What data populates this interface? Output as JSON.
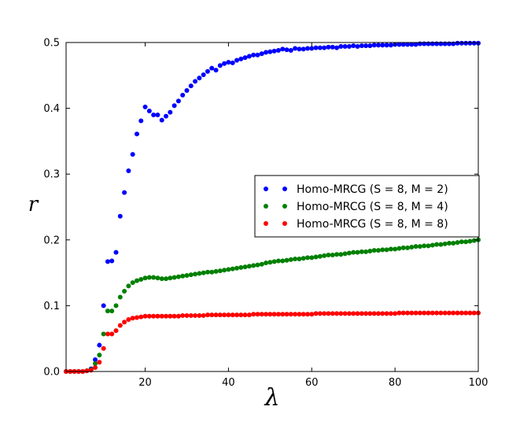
{
  "chart_data": {
    "type": "scatter",
    "title": "",
    "xlabel": "λ",
    "ylabel": "r",
    "xlim": [
      1,
      100
    ],
    "ylim": [
      0,
      0.5
    ],
    "xticks": [
      20,
      40,
      60,
      80,
      100
    ],
    "yticks": [
      0.0,
      0.1,
      0.2,
      0.3,
      0.4,
      0.5
    ],
    "grid": false,
    "legend_position": "center-right",
    "series": [
      {
        "name": "Homo-MRCG (S = 8, M = 2)",
        "color": "#0000ff",
        "points": [
          [
            1,
            0.0
          ],
          [
            2,
            0.0
          ],
          [
            3,
            0.0
          ],
          [
            4,
            0.0
          ],
          [
            5,
            0.0
          ],
          [
            6,
            0.001
          ],
          [
            7,
            0.004
          ],
          [
            8,
            0.018
          ],
          [
            9,
            0.04
          ],
          [
            10,
            0.1
          ],
          [
            11,
            0.167
          ],
          [
            12,
            0.168
          ],
          [
            13,
            0.181
          ],
          [
            14,
            0.236
          ],
          [
            15,
            0.272
          ],
          [
            16,
            0.305
          ],
          [
            17,
            0.33
          ],
          [
            18,
            0.361
          ],
          [
            19,
            0.381
          ],
          [
            20,
            0.402
          ],
          [
            21,
            0.396
          ],
          [
            22,
            0.39
          ],
          [
            23,
            0.39
          ],
          [
            24,
            0.382
          ],
          [
            25,
            0.388
          ],
          [
            26,
            0.394
          ],
          [
            27,
            0.404
          ],
          [
            28,
            0.411
          ],
          [
            29,
            0.42
          ],
          [
            30,
            0.427
          ],
          [
            31,
            0.434
          ],
          [
            32,
            0.441
          ],
          [
            33,
            0.446
          ],
          [
            34,
            0.451
          ],
          [
            35,
            0.456
          ],
          [
            36,
            0.461
          ],
          [
            37,
            0.458
          ],
          [
            38,
            0.465
          ],
          [
            39,
            0.468
          ],
          [
            40,
            0.47
          ],
          [
            41,
            0.469
          ],
          [
            42,
            0.473
          ],
          [
            43,
            0.475
          ],
          [
            44,
            0.477
          ],
          [
            45,
            0.479
          ],
          [
            46,
            0.481
          ],
          [
            47,
            0.481
          ],
          [
            48,
            0.483
          ],
          [
            49,
            0.485
          ],
          [
            50,
            0.486
          ],
          [
            51,
            0.487
          ],
          [
            52,
            0.488
          ],
          [
            53,
            0.49
          ],
          [
            54,
            0.489
          ],
          [
            55,
            0.488
          ],
          [
            56,
            0.491
          ],
          [
            57,
            0.49
          ],
          [
            58,
            0.49
          ],
          [
            59,
            0.491
          ],
          [
            60,
            0.491
          ],
          [
            61,
            0.492
          ],
          [
            62,
            0.492
          ],
          [
            63,
            0.492
          ],
          [
            64,
            0.493
          ],
          [
            65,
            0.493
          ],
          [
            66,
            0.492
          ],
          [
            67,
            0.494
          ],
          [
            68,
            0.494
          ],
          [
            69,
            0.494
          ],
          [
            70,
            0.495
          ],
          [
            71,
            0.494
          ],
          [
            72,
            0.495
          ],
          [
            73,
            0.495
          ],
          [
            74,
            0.495
          ],
          [
            75,
            0.496
          ],
          [
            76,
            0.496
          ],
          [
            77,
            0.496
          ],
          [
            78,
            0.496
          ],
          [
            79,
            0.496
          ],
          [
            80,
            0.497
          ],
          [
            81,
            0.497
          ],
          [
            82,
            0.497
          ],
          [
            83,
            0.497
          ],
          [
            84,
            0.497
          ],
          [
            85,
            0.497
          ],
          [
            86,
            0.498
          ],
          [
            87,
            0.498
          ],
          [
            88,
            0.498
          ],
          [
            89,
            0.498
          ],
          [
            90,
            0.498
          ],
          [
            91,
            0.498
          ],
          [
            92,
            0.498
          ],
          [
            93,
            0.498
          ],
          [
            94,
            0.498
          ],
          [
            95,
            0.499
          ],
          [
            96,
            0.499
          ],
          [
            97,
            0.499
          ],
          [
            98,
            0.499
          ],
          [
            99,
            0.499
          ],
          [
            100,
            0.499
          ]
        ]
      },
      {
        "name": "Homo-MRCG (S = 8, M = 4)",
        "color": "#008000",
        "points": [
          [
            1,
            0.0
          ],
          [
            2,
            0.0
          ],
          [
            3,
            0.0
          ],
          [
            4,
            0.0
          ],
          [
            5,
            0.0
          ],
          [
            6,
            0.001
          ],
          [
            7,
            0.003
          ],
          [
            8,
            0.012
          ],
          [
            9,
            0.025
          ],
          [
            10,
            0.057
          ],
          [
            11,
            0.092
          ],
          [
            12,
            0.092
          ],
          [
            13,
            0.1
          ],
          [
            14,
            0.113
          ],
          [
            15,
            0.122
          ],
          [
            16,
            0.13
          ],
          [
            17,
            0.135
          ],
          [
            18,
            0.138
          ],
          [
            19,
            0.14
          ],
          [
            20,
            0.142
          ],
          [
            21,
            0.143
          ],
          [
            22,
            0.143
          ],
          [
            23,
            0.142
          ],
          [
            24,
            0.141
          ],
          [
            25,
            0.141
          ],
          [
            26,
            0.142
          ],
          [
            27,
            0.143
          ],
          [
            28,
            0.144
          ],
          [
            29,
            0.145
          ],
          [
            30,
            0.146
          ],
          [
            31,
            0.147
          ],
          [
            32,
            0.148
          ],
          [
            33,
            0.149
          ],
          [
            34,
            0.15
          ],
          [
            35,
            0.151
          ],
          [
            36,
            0.151
          ],
          [
            37,
            0.152
          ],
          [
            38,
            0.153
          ],
          [
            39,
            0.154
          ],
          [
            40,
            0.155
          ],
          [
            41,
            0.156
          ],
          [
            42,
            0.157
          ],
          [
            43,
            0.158
          ],
          [
            44,
            0.159
          ],
          [
            45,
            0.16
          ],
          [
            46,
            0.161
          ],
          [
            47,
            0.162
          ],
          [
            48,
            0.163
          ],
          [
            49,
            0.165
          ],
          [
            50,
            0.166
          ],
          [
            51,
            0.167
          ],
          [
            52,
            0.168
          ],
          [
            53,
            0.168
          ],
          [
            54,
            0.169
          ],
          [
            55,
            0.17
          ],
          [
            56,
            0.171
          ],
          [
            57,
            0.171
          ],
          [
            58,
            0.172
          ],
          [
            59,
            0.173
          ],
          [
            60,
            0.173
          ],
          [
            61,
            0.174
          ],
          [
            62,
            0.175
          ],
          [
            63,
            0.176
          ],
          [
            64,
            0.177
          ],
          [
            65,
            0.177
          ],
          [
            66,
            0.178
          ],
          [
            67,
            0.178
          ],
          [
            68,
            0.179
          ],
          [
            69,
            0.18
          ],
          [
            70,
            0.181
          ],
          [
            71,
            0.181
          ],
          [
            72,
            0.182
          ],
          [
            73,
            0.182
          ],
          [
            74,
            0.183
          ],
          [
            75,
            0.184
          ],
          [
            76,
            0.184
          ],
          [
            77,
            0.185
          ],
          [
            78,
            0.185
          ],
          [
            79,
            0.186
          ],
          [
            80,
            0.186
          ],
          [
            81,
            0.187
          ],
          [
            82,
            0.188
          ],
          [
            83,
            0.188
          ],
          [
            84,
            0.189
          ],
          [
            85,
            0.19
          ],
          [
            86,
            0.19
          ],
          [
            87,
            0.191
          ],
          [
            88,
            0.191
          ],
          [
            89,
            0.192
          ],
          [
            90,
            0.193
          ],
          [
            91,
            0.193
          ],
          [
            92,
            0.194
          ],
          [
            93,
            0.195
          ],
          [
            94,
            0.195
          ],
          [
            95,
            0.196
          ],
          [
            96,
            0.197
          ],
          [
            97,
            0.197
          ],
          [
            98,
            0.198
          ],
          [
            99,
            0.199
          ],
          [
            100,
            0.2
          ]
        ]
      },
      {
        "name": "Homo-MRCG (S = 8, M = 8)",
        "color": "#ff0000",
        "points": [
          [
            1,
            0.0
          ],
          [
            2,
            0.0
          ],
          [
            3,
            0.0
          ],
          [
            4,
            0.0
          ],
          [
            5,
            0.0
          ],
          [
            6,
            0.001
          ],
          [
            7,
            0.002
          ],
          [
            8,
            0.006
          ],
          [
            9,
            0.014
          ],
          [
            10,
            0.035
          ],
          [
            11,
            0.057
          ],
          [
            12,
            0.057
          ],
          [
            13,
            0.062
          ],
          [
            14,
            0.07
          ],
          [
            15,
            0.075
          ],
          [
            16,
            0.079
          ],
          [
            17,
            0.081
          ],
          [
            18,
            0.082
          ],
          [
            19,
            0.083
          ],
          [
            20,
            0.084
          ],
          [
            21,
            0.084
          ],
          [
            22,
            0.084
          ],
          [
            23,
            0.084
          ],
          [
            24,
            0.084
          ],
          [
            25,
            0.084
          ],
          [
            26,
            0.084
          ],
          [
            27,
            0.084
          ],
          [
            28,
            0.084
          ],
          [
            29,
            0.085
          ],
          [
            30,
            0.085
          ],
          [
            31,
            0.085
          ],
          [
            32,
            0.085
          ],
          [
            33,
            0.085
          ],
          [
            34,
            0.085
          ],
          [
            35,
            0.086
          ],
          [
            36,
            0.086
          ],
          [
            37,
            0.086
          ],
          [
            38,
            0.086
          ],
          [
            39,
            0.086
          ],
          [
            40,
            0.086
          ],
          [
            41,
            0.086
          ],
          [
            42,
            0.086
          ],
          [
            43,
            0.086
          ],
          [
            44,
            0.086
          ],
          [
            45,
            0.086
          ],
          [
            46,
            0.087
          ],
          [
            47,
            0.087
          ],
          [
            48,
            0.087
          ],
          [
            49,
            0.087
          ],
          [
            50,
            0.087
          ],
          [
            51,
            0.087
          ],
          [
            52,
            0.087
          ],
          [
            53,
            0.087
          ],
          [
            54,
            0.087
          ],
          [
            55,
            0.087
          ],
          [
            56,
            0.087
          ],
          [
            57,
            0.087
          ],
          [
            58,
            0.087
          ],
          [
            59,
            0.087
          ],
          [
            60,
            0.087
          ],
          [
            61,
            0.088
          ],
          [
            62,
            0.088
          ],
          [
            63,
            0.088
          ],
          [
            64,
            0.088
          ],
          [
            65,
            0.088
          ],
          [
            66,
            0.088
          ],
          [
            67,
            0.088
          ],
          [
            68,
            0.088
          ],
          [
            69,
            0.088
          ],
          [
            70,
            0.088
          ],
          [
            71,
            0.088
          ],
          [
            72,
            0.088
          ],
          [
            73,
            0.088
          ],
          [
            74,
            0.088
          ],
          [
            75,
            0.088
          ],
          [
            76,
            0.088
          ],
          [
            77,
            0.088
          ],
          [
            78,
            0.088
          ],
          [
            79,
            0.088
          ],
          [
            80,
            0.088
          ],
          [
            81,
            0.089
          ],
          [
            82,
            0.089
          ],
          [
            83,
            0.089
          ],
          [
            84,
            0.089
          ],
          [
            85,
            0.089
          ],
          [
            86,
            0.089
          ],
          [
            87,
            0.089
          ],
          [
            88,
            0.089
          ],
          [
            89,
            0.089
          ],
          [
            90,
            0.089
          ],
          [
            91,
            0.089
          ],
          [
            92,
            0.089
          ],
          [
            93,
            0.089
          ],
          [
            94,
            0.089
          ],
          [
            95,
            0.089
          ],
          [
            96,
            0.089
          ],
          [
            97,
            0.089
          ],
          [
            98,
            0.089
          ],
          [
            99,
            0.089
          ],
          [
            100,
            0.089
          ]
        ]
      }
    ]
  }
}
